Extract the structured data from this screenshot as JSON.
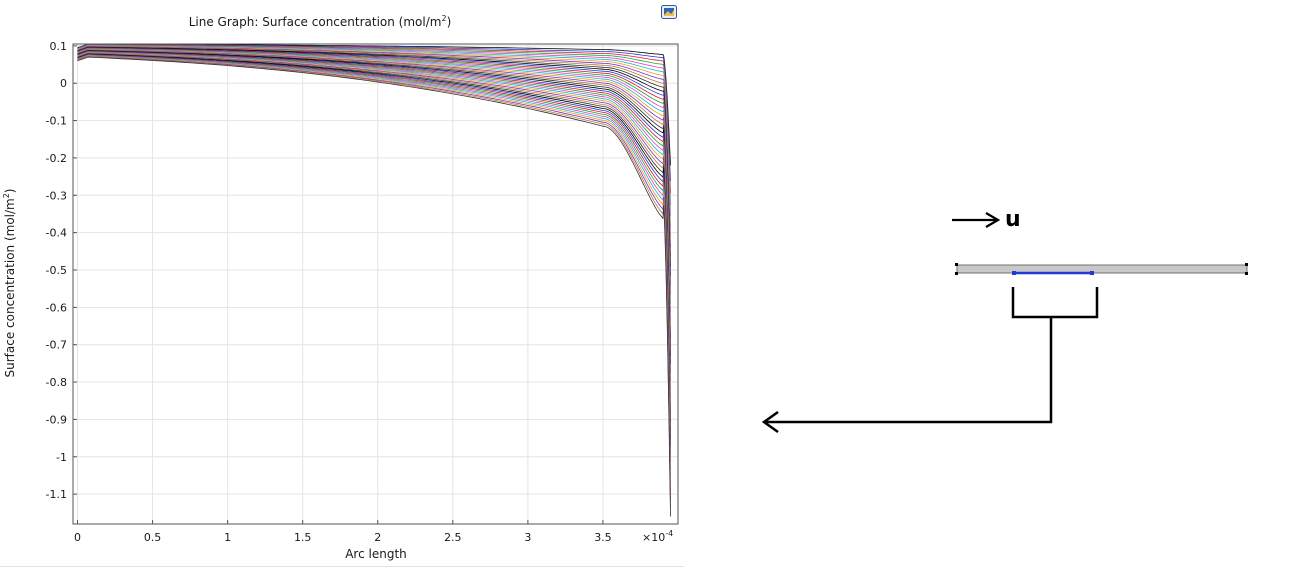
{
  "chart_data": {
    "type": "line",
    "title": "Line Graph: Surface concentration (mol/m²)",
    "title_main": "Line Graph: Surface concentration (mol/m",
    "title_sup": "2",
    "title_end": ")",
    "xlabel": "Arc length",
    "ylabel_main": "Surface concentration (mol/m",
    "ylabel_sup": "2",
    "ylabel_end": ")",
    "x_scale_label": "×10",
    "x_scale_exp": "-4",
    "x_ticks": [
      "0",
      "0.5",
      "1",
      "1.5",
      "2",
      "2.5",
      "3",
      "3.5"
    ],
    "x_tick_values": [
      0,
      0.5,
      1,
      1.5,
      2,
      2.5,
      3,
      3.5
    ],
    "y_ticks": [
      "0.1",
      "0",
      "-0.1",
      "-0.2",
      "-0.3",
      "-0.4",
      "-0.5",
      "-0.6",
      "-0.7",
      "-0.8",
      "-0.9",
      "-1",
      "-1.1"
    ],
    "y_tick_values": [
      0.1,
      0,
      -0.1,
      -0.2,
      -0.3,
      -0.4,
      -0.5,
      -0.6,
      -0.7,
      -0.8,
      -0.9,
      -1,
      -1.1
    ],
    "xlim": [
      -0.03,
      4.0
    ],
    "ylim": [
      -1.18,
      0.105
    ],
    "x_end": 3.95,
    "grid": true,
    "series_count": 40,
    "series_family": {
      "start_value_range": [
        0.06,
        0.095
      ],
      "level_at_3_5_range": [
        -0.115,
        0.09
      ],
      "peak_slope_range": [
        -0.15,
        -2.2
      ],
      "end_value_range": [
        -0.22,
        -1.16
      ]
    },
    "series_colors": [
      "#000000",
      "#1f3fd6",
      "#e0162b",
      "#12a93a",
      "#e83ec8",
      "#18b9c6",
      "#f0a020",
      "#7a32c8",
      "#bb7a3a",
      "#333333"
    ]
  },
  "diagram": {
    "flow_label": "u",
    "bar_color": "#c8c8c8",
    "bar_edge_color": "#707070",
    "highlight_color": "#1f3ad6"
  }
}
